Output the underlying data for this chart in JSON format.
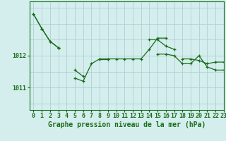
{
  "bg_color": "#d4eeee",
  "line_color": "#1a6b1a",
  "grid_color": "#b0d0d0",
  "axis_color": "#1a6b1a",
  "xlabel": "Graphe pression niveau de la mer (hPa)",
  "xlabel_fontsize": 7,
  "tick_fontsize": 6,
  "ytick_labels": [
    "1011",
    "1012"
  ],
  "ytick_values": [
    1011,
    1012
  ],
  "xlim": [
    -0.5,
    23
  ],
  "ylim": [
    1010.3,
    1013.7
  ],
  "hours": [
    0,
    1,
    2,
    3,
    4,
    5,
    6,
    7,
    8,
    9,
    10,
    11,
    12,
    13,
    14,
    15,
    16,
    17,
    18,
    19,
    20,
    21,
    22,
    23
  ],
  "series1": [
    1013.3,
    1012.85,
    1012.45,
    1012.25,
    null,
    null,
    null,
    null,
    null,
    null,
    null,
    null,
    null,
    null,
    null,
    null,
    null,
    null,
    null,
    null,
    null,
    null,
    null,
    null
  ],
  "series2": [
    1013.3,
    1012.85,
    1012.45,
    1012.25,
    null,
    1011.55,
    1011.35,
    null,
    1011.9,
    1011.9,
    null,
    null,
    null,
    null,
    1012.5,
    1012.5,
    1012.3,
    1012.2,
    null,
    null,
    null,
    null,
    null,
    null
  ],
  "series3": [
    null,
    null,
    null,
    1012.25,
    null,
    1011.3,
    1011.2,
    1011.75,
    1011.9,
    1011.9,
    1011.9,
    1011.9,
    1011.9,
    1011.9,
    1012.2,
    1012.55,
    1012.55,
    null,
    1011.9,
    1011.9,
    1011.85,
    1011.75,
    1011.8,
    1011.8
  ],
  "series4": [
    null,
    null,
    null,
    null,
    null,
    null,
    null,
    null,
    null,
    null,
    null,
    null,
    null,
    null,
    null,
    1012.05,
    1012.05,
    1012.0,
    1011.75,
    1011.75,
    1012.0,
    1011.65,
    1011.55,
    1011.55
  ]
}
